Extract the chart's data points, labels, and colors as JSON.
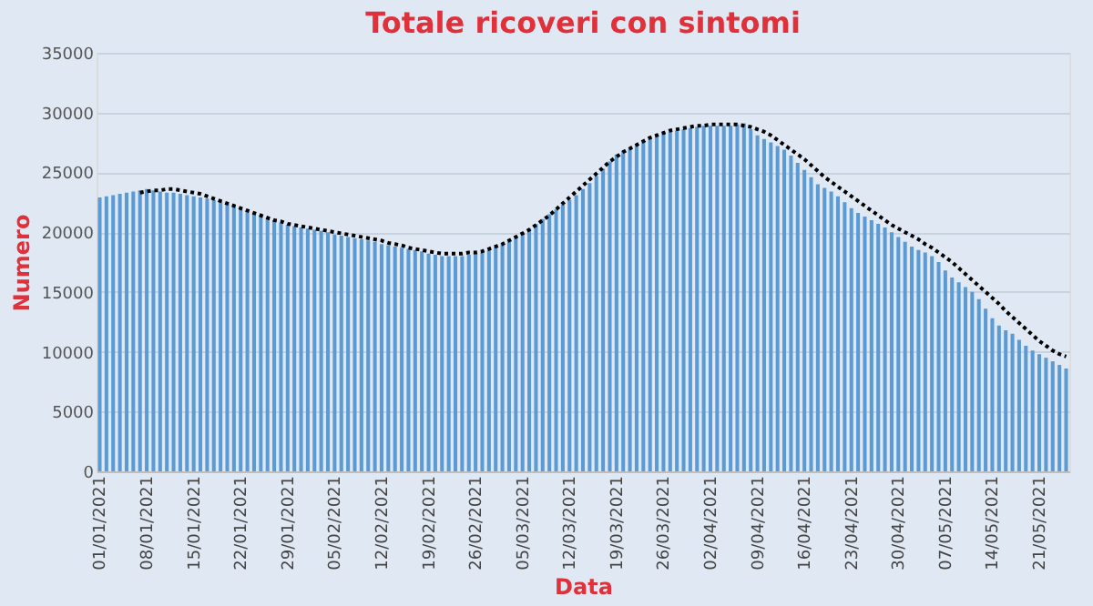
{
  "chart_data": {
    "type": "bar",
    "title": "Totale ricoveri con sintomi",
    "xlabel": "Data",
    "ylabel": "Numero",
    "categories": [
      "01/01/2021",
      null,
      null,
      null,
      null,
      null,
      null,
      "08/01/2021",
      null,
      null,
      null,
      null,
      null,
      null,
      "15/01/2021",
      null,
      null,
      null,
      null,
      null,
      null,
      "22/01/2021",
      null,
      null,
      null,
      null,
      null,
      null,
      "29/01/2021",
      null,
      null,
      null,
      null,
      null,
      null,
      "05/02/2021",
      null,
      null,
      null,
      null,
      null,
      null,
      "12/02/2021",
      null,
      null,
      null,
      null,
      null,
      null,
      "19/02/2021",
      null,
      null,
      null,
      null,
      null,
      null,
      "26/02/2021",
      null,
      null,
      null,
      null,
      null,
      null,
      "05/03/2021",
      null,
      null,
      null,
      null,
      null,
      null,
      "12/03/2021",
      null,
      null,
      null,
      null,
      null,
      null,
      "19/03/2021",
      null,
      null,
      null,
      null,
      null,
      null,
      "26/03/2021",
      null,
      null,
      null,
      null,
      null,
      null,
      "02/04/2021",
      null,
      null,
      null,
      null,
      null,
      null,
      "09/04/2021",
      null,
      null,
      null,
      null,
      null,
      null,
      "16/04/2021",
      null,
      null,
      null,
      null,
      null,
      null,
      "23/04/2021",
      null,
      null,
      null,
      null,
      null,
      null,
      "30/04/2021",
      null,
      null,
      null,
      null,
      null,
      null,
      "07/05/2021",
      null,
      null,
      null,
      null,
      null,
      null,
      "14/05/2021",
      null,
      null,
      null,
      null,
      null,
      null,
      "21/05/2021",
      null,
      null,
      null,
      null
    ],
    "series": [
      {
        "color": "#5b9bd5",
        "values": [
          22900,
          23000,
          23100,
          23200,
          23300,
          23400,
          23500,
          23600,
          23500,
          23400,
          23300,
          23300,
          23200,
          23100,
          23000,
          22900,
          22800,
          22700,
          22600,
          22400,
          22200,
          22000,
          21800,
          21600,
          21400,
          21200,
          21000,
          20800,
          20600,
          20500,
          20400,
          20300,
          20200,
          20100,
          20000,
          19800,
          19700,
          19600,
          19500,
          19400,
          19300,
          19200,
          19000,
          18900,
          18800,
          18700,
          18600,
          18500,
          18400,
          18200,
          18100,
          18000,
          18000,
          18000,
          18000,
          18100,
          18200,
          18300,
          18500,
          18800,
          19100,
          19400,
          19700,
          20000,
          20300,
          20700,
          21100,
          21500,
          21900,
          22300,
          22700,
          23100,
          23600,
          24100,
          24700,
          25300,
          25900,
          26500,
          26800,
          27000,
          27300,
          27600,
          27900,
          28100,
          28300,
          28400,
          28500,
          28600,
          28700,
          28800,
          28900,
          28900,
          28900,
          28900,
          28900,
          29000,
          29100,
          28600,
          28100,
          27800,
          27500,
          27200,
          26900,
          26400,
          25800,
          25200,
          24600,
          24000,
          23700,
          23400,
          23000,
          22500,
          22000,
          21600,
          21300,
          21000,
          20700,
          20400,
          20000,
          19600,
          19200,
          18800,
          18500,
          18300,
          18000,
          17500,
          16800,
          16200,
          15800,
          15400,
          15000,
          14400,
          13600,
          12800,
          12200,
          11800,
          11500,
          11000,
          10500,
          10100,
          9800,
          9500,
          9200,
          8900,
          8600
        ]
      },
      {
        "type": "line",
        "color": "#000000",
        "line_style": "dotted",
        "values": [
          null,
          null,
          null,
          null,
          null,
          null,
          23300,
          23400,
          23500,
          23500,
          23600,
          23600,
          23500,
          23400,
          23300,
          23200,
          23000,
          22800,
          22600,
          22400,
          22200,
          22000,
          21800,
          21600,
          21400,
          21200,
          21000,
          20900,
          20700,
          20600,
          20500,
          20400,
          20300,
          20200,
          20100,
          20000,
          19900,
          19800,
          19700,
          19600,
          19500,
          19400,
          19300,
          19100,
          19000,
          18900,
          18700,
          18600,
          18500,
          18400,
          18300,
          18200,
          18200,
          18200,
          18200,
          18300,
          18300,
          18400,
          18600,
          18800,
          19000,
          19300,
          19600,
          19900,
          20200,
          20600,
          21000,
          21400,
          21900,
          22400,
          22900,
          23400,
          23900,
          24400,
          24900,
          25400,
          25900,
          26300,
          26700,
          27000,
          27300,
          27600,
          27900,
          28100,
          28300,
          28500,
          28600,
          28700,
          28800,
          28900,
          28900,
          29000,
          29000,
          29000,
          29000,
          29000,
          28900,
          28800,
          28600,
          28400,
          28100,
          27700,
          27300,
          26900,
          26500,
          26100,
          25600,
          25100,
          24600,
          24200,
          23800,
          23400,
          23000,
          22600,
          22200,
          21800,
          21400,
          21000,
          20600,
          20300,
          20000,
          19700,
          19400,
          19000,
          18700,
          18300,
          17900,
          17500,
          17000,
          16500,
          16000,
          15500,
          15000,
          14500,
          14000,
          13400,
          12900,
          12400,
          11900,
          11400,
          10900,
          10500,
          10100,
          9800,
          9600
        ]
      }
    ],
    "ylim": [
      0,
      35000
    ],
    "yticks": [
      0,
      5000,
      10000,
      15000,
      20000,
      25000,
      30000,
      35000
    ],
    "grid": "y"
  }
}
